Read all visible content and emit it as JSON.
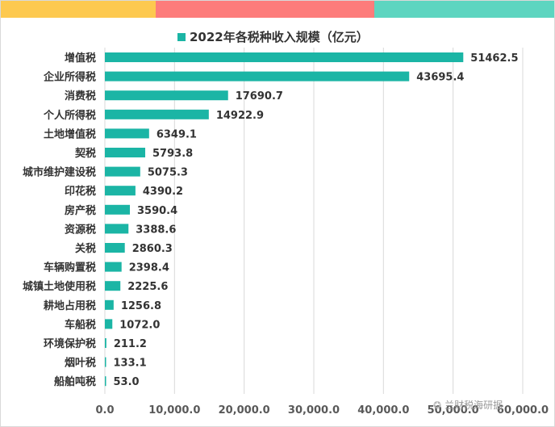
{
  "header_stripes": [
    {
      "color": "#FDC94F"
    },
    {
      "color": "#FD7C7B"
    },
    {
      "color": "#5DD5C0"
    }
  ],
  "watermark": {
    "text": "兰财税海研据",
    "icon": "wechat-icon"
  },
  "chart_data": {
    "type": "bar",
    "orientation": "horizontal",
    "title": "",
    "xlabel": "",
    "ylabel": "",
    "xlim": [
      0,
      60000
    ],
    "ticks": [
      0,
      10000,
      20000,
      30000,
      40000,
      50000,
      60000
    ],
    "tick_labels": [
      "0.0",
      "10,000.0",
      "20,000.0",
      "30,000.0",
      "40,000.0",
      "50,000.0",
      "60,000.0"
    ],
    "grid": true,
    "legend_position": "top",
    "bar_color": "#1BB5A5",
    "series": [
      {
        "name": "2022年各税种收入规模（亿元）",
        "values": [
          51462.5,
          43695.4,
          17690.7,
          14922.9,
          6349.1,
          5793.8,
          5075.3,
          4390.2,
          3590.4,
          3388.6,
          2860.3,
          2398.4,
          2225.6,
          1256.8,
          1072.0,
          211.2,
          133.1,
          53.0
        ],
        "labels": [
          "51462.5",
          "43695.4",
          "17690.7",
          "14922.9",
          "6349.1",
          "5793.8",
          "5075.3",
          "4390.2",
          "3590.4",
          "3388.6",
          "2860.3",
          "2398.4",
          "2225.6",
          "1256.8",
          "1072.0",
          "211.2",
          "133.1",
          "53.0"
        ]
      }
    ],
    "categories": [
      "增值税",
      "企业所得税",
      "消费税",
      "个人所得税",
      "土地增值税",
      "契税",
      "城市维护建设税",
      "印花税",
      "房产税",
      "资源税",
      "关税",
      "车辆购置税",
      "城镇土地使用税",
      "耕地占用税",
      "车船税",
      "环境保护税",
      "烟叶税",
      "船舶吨税"
    ]
  }
}
